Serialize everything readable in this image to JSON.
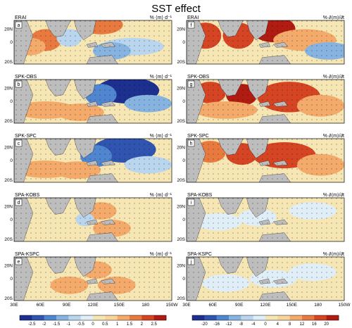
{
  "chart_data": {
    "type": "heatmap",
    "title": "SST effect",
    "colors": {
      "land": "#bdbdbd",
      "ocean_neutral": "#f5e6b4",
      "diverging": [
        "#1d2f8f",
        "#2f55b0",
        "#4f86cf",
        "#86b3e0",
        "#b9d6ee",
        "#e0eef8",
        "#f5e6b4",
        "#f7d49a",
        "#f3aa6a",
        "#e8793f",
        "#d64523",
        "#b11c12"
      ]
    },
    "x_ticks": [
      "30E",
      "60E",
      "90E",
      "120E",
      "150E",
      "180",
      "150W"
    ],
    "y_ticks": [
      "20N",
      "0",
      "20S"
    ],
    "panels": [
      {
        "letter": "a",
        "name": "ERAI",
        "units": "% ⟨m⟩ d⁻¹",
        "column": "left",
        "row": 0
      },
      {
        "letter": "f",
        "name": "ERAI",
        "units": "% ∂⟨m⟩/∂t",
        "column": "right",
        "row": 0
      },
      {
        "letter": "b",
        "name": "SPK-OBS",
        "units": "% ⟨m⟩ d⁻¹",
        "column": "left",
        "row": 1
      },
      {
        "letter": "g",
        "name": "SPK-OBS",
        "units": "% ∂⟨m⟩/∂t",
        "column": "right",
        "row": 1
      },
      {
        "letter": "c",
        "name": "SPK-SPC",
        "units": "% ⟨m⟩ d⁻¹",
        "column": "left",
        "row": 2
      },
      {
        "letter": "h",
        "name": "SPK-SPC",
        "units": "% ∂⟨m⟩/∂t",
        "column": "right",
        "row": 2
      },
      {
        "letter": "d",
        "name": "SPA-KOBS",
        "units": "% ⟨m⟩ d⁻¹",
        "column": "left",
        "row": 3
      },
      {
        "letter": "i",
        "name": "SPA-KOBS",
        "units": "% ∂⟨m⟩/∂t",
        "column": "right",
        "row": 3
      },
      {
        "letter": "e",
        "name": "SPA-KSPC",
        "units": "% ⟨m⟩ d⁻¹",
        "column": "left",
        "row": 4
      },
      {
        "letter": "j",
        "name": "SPA-KSPC",
        "units": "% ∂⟨m⟩/∂t",
        "column": "right",
        "row": 4
      }
    ],
    "colorbars": [
      {
        "column": "left",
        "labels": [
          "-2.5",
          "-2",
          "-1.5",
          "-1",
          "-0.5",
          "0",
          "0.5",
          "1",
          "1.5",
          "2",
          "2.5"
        ]
      },
      {
        "column": "right",
        "labels": [
          "-20",
          "-16",
          "-12",
          "-8",
          "-4",
          "0",
          "4",
          "8",
          "12",
          "16",
          "20"
        ]
      }
    ]
  }
}
